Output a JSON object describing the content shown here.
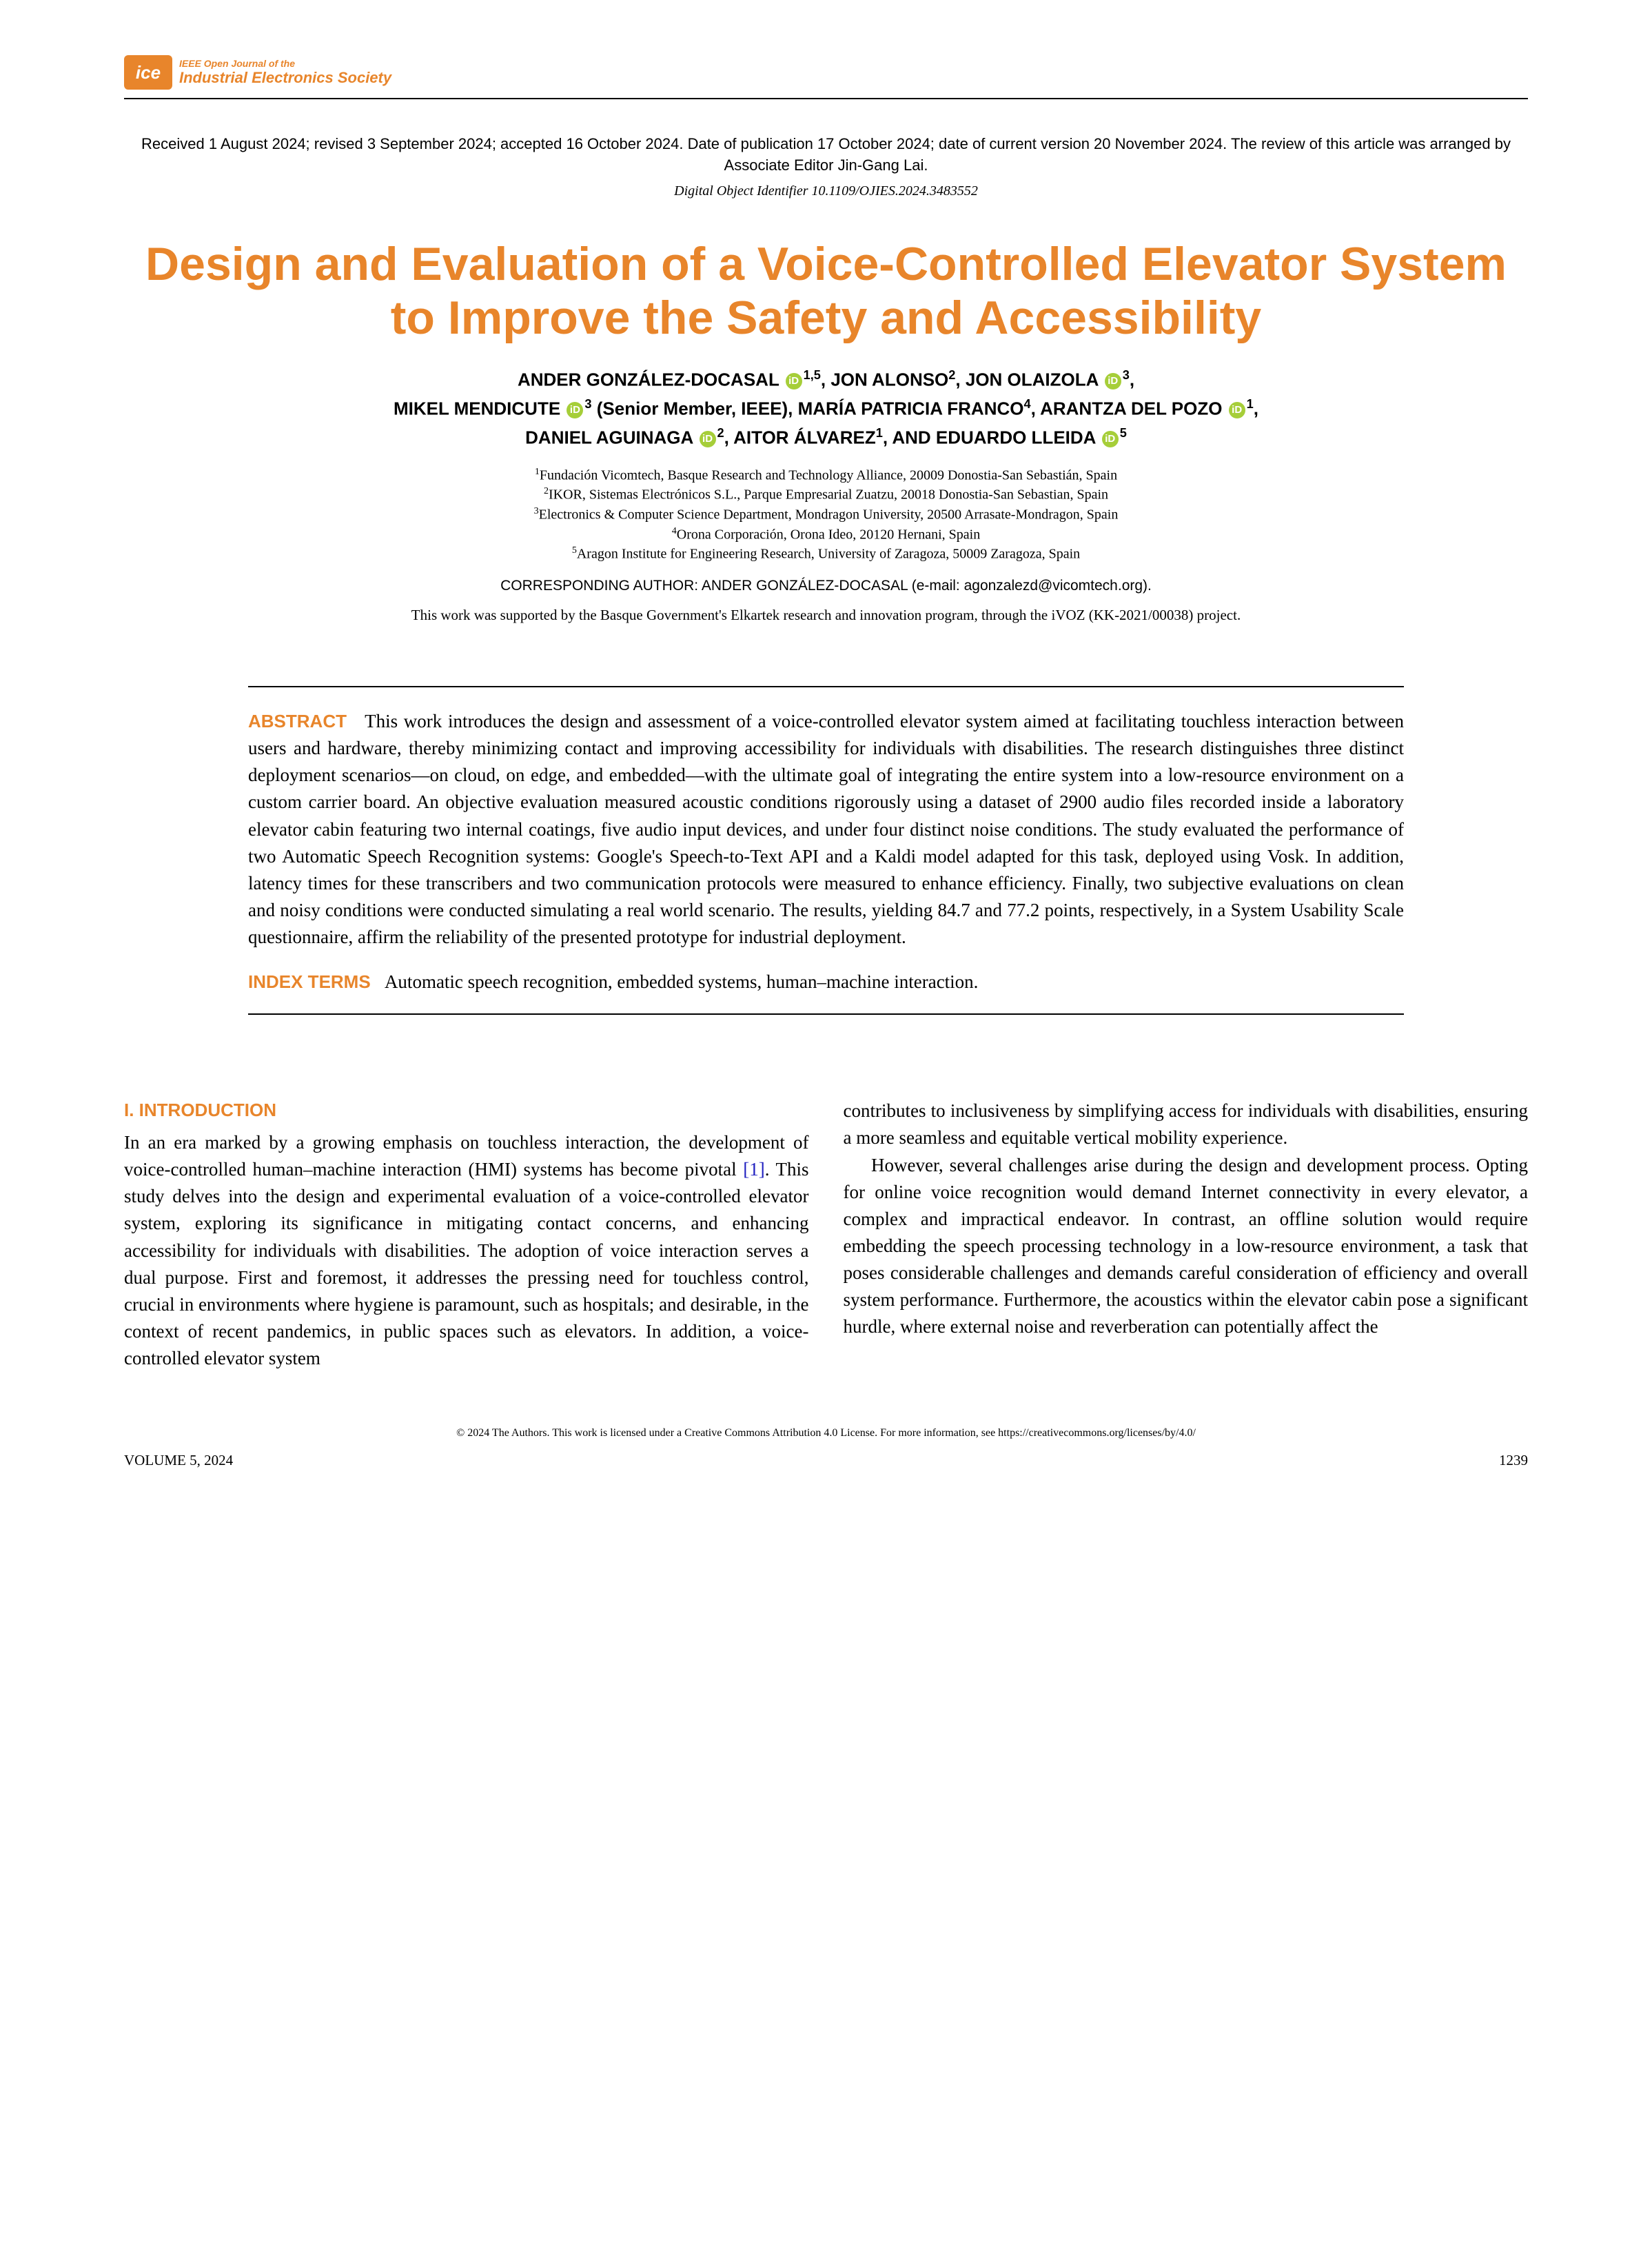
{
  "journal": {
    "line1": "IEEE Open Journal of the",
    "line2": "Industrial Electronics Society",
    "logomark": "ice"
  },
  "received": "Received 1 August 2024; revised 3 September 2024; accepted 16 October 2024. Date of publication 17 October 2024; date of current version 20 November 2024. The review of this article was arranged by Associate Editor Jin-Gang Lai.",
  "doi": "Digital Object Identifier 10.1109/OJIES.2024.3483552",
  "title": "Design and Evaluation of a Voice-Controlled Elevator System to Improve the Safety and Accessibility",
  "authors_html_parts": {
    "a1": "ANDER GONZÁLEZ-DOCASAL",
    "a1_aff": "1,5",
    "a2": ", JON ALONSO",
    "a2_aff": "2",
    "a3": ", JON OLAIZOLA",
    "a3_aff": "3",
    "a4": "MIKEL MENDICUTE",
    "a4_aff": "3",
    "a4_role": " (Senior Member, IEEE), ",
    "a5": "MARÍA PATRICIA FRANCO",
    "a5_aff": "4",
    "a6": ", ARANTZA DEL POZO",
    "a6_aff": "1",
    "a7": "DANIEL AGUINAGA",
    "a7_aff": "2",
    "a8": ", AITOR ÁLVAREZ",
    "a8_aff": "1",
    "a9": ", AND EDUARDO LLEIDA",
    "a9_aff": "5"
  },
  "affiliations": [
    "Fundación Vicomtech, Basque Research and Technology Alliance, 20009 Donostia-San Sebastián, Spain",
    "IKOR, Sistemas Electrónicos S.L., Parque Empresarial Zuatzu, 20018 Donostia-San Sebastian, Spain",
    "Electronics & Computer Science Department, Mondragon University, 20500 Arrasate-Mondragon, Spain",
    "Orona Corporación, Orona Ideo, 20120 Hernani, Spain",
    "Aragon Institute for Engineering Research, University of Zaragoza, 50009 Zaragoza, Spain"
  ],
  "corresponding": "CORRESPONDING AUTHOR: ANDER GONZÁLEZ-DOCASAL (e-mail: agonzalezd@vicomtech.org).",
  "funding": "This work was supported by the Basque Government's Elkartek research and innovation program, through the iVOZ (KK-2021/00038) project.",
  "abstract_label": "ABSTRACT",
  "abstract": "This work introduces the design and assessment of a voice-controlled elevator system aimed at facilitating touchless interaction between users and hardware, thereby minimizing contact and improving accessibility for individuals with disabilities. The research distinguishes three distinct deployment scenarios—on cloud, on edge, and embedded—with the ultimate goal of integrating the entire system into a low-resource environment on a custom carrier board. An objective evaluation measured acoustic conditions rigorously using a dataset of 2900 audio files recorded inside a laboratory elevator cabin featuring two internal coatings, five audio input devices, and under four distinct noise conditions. The study evaluated the performance of two Automatic Speech Recognition systems: Google's Speech-to-Text API and a Kaldi model adapted for this task, deployed using Vosk. In addition, latency times for these transcribers and two communication protocols were measured to enhance efficiency. Finally, two subjective evaluations on clean and noisy conditions were conducted simulating a real world scenario. The results, yielding 84.7 and 77.2 points, respectively, in a System Usability Scale questionnaire, affirm the reliability of the presented prototype for industrial deployment.",
  "index_label": "INDEX TERMS",
  "index_terms": "Automatic speech recognition, embedded systems, human–machine interaction.",
  "section1_heading": "I. INTRODUCTION",
  "body_col1_p1": "In an era marked by a growing emphasis on touchless interaction, the development of voice-controlled human–machine interaction (HMI) systems has become pivotal ",
  "body_col1_ref": "[1]",
  "body_col1_p1b": ". This study delves into the design and experimental evaluation of a voice-controlled elevator system, exploring its significance in mitigating contact concerns, and enhancing accessibility for individuals with disabilities. The adoption of voice interaction serves a dual purpose. First and foremost, it addresses the pressing need for touchless control, crucial in environments where hygiene is paramount, such as hospitals; and desirable, in the context of recent pandemics, in public spaces such as elevators. In addition, a voice-controlled elevator system",
  "body_col2_p1": "contributes to inclusiveness by simplifying access for individuals with disabilities, ensuring a more seamless and equitable vertical mobility experience.",
  "body_col2_p2": "However, several challenges arise during the design and development process. Opting for online voice recognition would demand Internet connectivity in every elevator, a complex and impractical endeavor. In contrast, an offline solution would require embedding the speech processing technology in a low-resource environment, a task that poses considerable challenges and demands careful consideration of efficiency and overall system performance. Furthermore, the acoustics within the elevator cabin pose a significant hurdle, where external noise and reverberation can potentially affect the",
  "footer": {
    "license": "© 2024 The Authors. This work is licensed under a Creative Commons Attribution 4.0 License. For more information, see https://creativecommons.org/licenses/by/4.0/",
    "volume": "VOLUME 5, 2024",
    "page": "1239"
  },
  "colors": {
    "accent": "#e8852b",
    "orcid": "#a6ce39",
    "link": "#2020c0",
    "text": "#000000",
    "bg": "#ffffff"
  },
  "typography": {
    "title_fontsize_pt": 34,
    "author_fontsize_pt": 13,
    "body_fontsize_pt": 13.5,
    "abstract_fontsize_pt": 13.5,
    "affiliation_fontsize_pt": 10,
    "title_font": "Arial, sans-serif",
    "body_font": "Georgia, serif"
  }
}
